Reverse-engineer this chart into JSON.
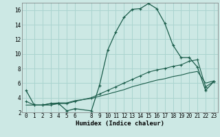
{
  "title": "",
  "xlabel": "Humidex (Indice chaleur)",
  "bg_color": "#cce8e4",
  "grid_color": "#aad4cf",
  "line_color": "#1a5c4a",
  "xlim": [
    -0.5,
    23.5
  ],
  "ylim": [
    2,
    17
  ],
  "xticks": [
    0,
    1,
    2,
    3,
    4,
    5,
    6,
    8,
    9,
    10,
    11,
    12,
    13,
    14,
    15,
    16,
    17,
    18,
    19,
    20,
    21,
    22,
    23
  ],
  "yticks": [
    2,
    4,
    6,
    8,
    10,
    12,
    14,
    16
  ],
  "main_x": [
    0,
    1,
    2,
    3,
    4,
    5,
    6,
    8,
    9,
    10,
    11,
    12,
    13,
    14,
    15,
    16,
    17,
    18,
    19,
    20,
    21,
    22,
    23
  ],
  "main_y": [
    5.0,
    3.0,
    3.0,
    3.2,
    3.2,
    2.2,
    2.5,
    2.2,
    5.7,
    10.5,
    13.0,
    15.0,
    16.1,
    16.2,
    16.9,
    16.2,
    14.2,
    11.2,
    9.5,
    9.5,
    8.2,
    5.0,
    6.2
  ],
  "line2_x": [
    0,
    1,
    2,
    3,
    4,
    5,
    6,
    8,
    9,
    10,
    11,
    12,
    13,
    14,
    15,
    16,
    17,
    18,
    19,
    20,
    21,
    22,
    23
  ],
  "line2_y": [
    3.5,
    3.0,
    3.0,
    3.0,
    3.2,
    3.2,
    3.5,
    4.0,
    4.5,
    5.0,
    5.5,
    6.0,
    6.5,
    7.0,
    7.5,
    7.8,
    8.0,
    8.3,
    8.5,
    9.0,
    9.2,
    5.5,
    6.2
  ],
  "line3_x": [
    0,
    1,
    2,
    3,
    4,
    5,
    6,
    8,
    9,
    10,
    11,
    12,
    13,
    14,
    15,
    16,
    17,
    18,
    19,
    20,
    21,
    22,
    23
  ],
  "line3_y": [
    3.0,
    3.0,
    3.0,
    3.2,
    3.3,
    3.3,
    3.6,
    3.9,
    4.2,
    4.5,
    4.8,
    5.1,
    5.5,
    5.8,
    6.1,
    6.4,
    6.6,
    6.9,
    7.1,
    7.4,
    7.6,
    6.0,
    6.3
  ],
  "tick_fontsize": 5.5,
  "xlabel_fontsize": 6.5
}
